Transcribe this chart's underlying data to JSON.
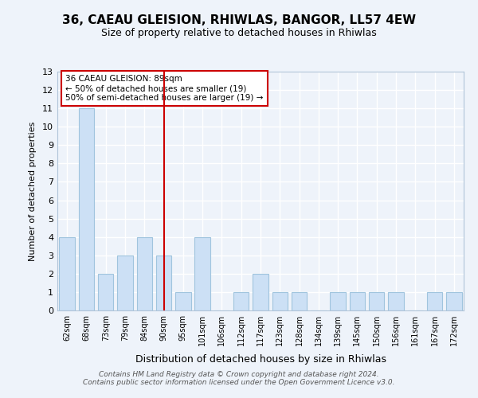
{
  "title1": "36, CAEAU GLEISION, RHIWLAS, BANGOR, LL57 4EW",
  "title2": "Size of property relative to detached houses in Rhiwlas",
  "xlabel": "Distribution of detached houses by size in Rhiwlas",
  "ylabel": "Number of detached properties",
  "categories": [
    "62sqm",
    "68sqm",
    "73sqm",
    "79sqm",
    "84sqm",
    "90sqm",
    "95sqm",
    "101sqm",
    "106sqm",
    "112sqm",
    "117sqm",
    "123sqm",
    "128sqm",
    "134sqm",
    "139sqm",
    "145sqm",
    "150sqm",
    "156sqm",
    "161sqm",
    "167sqm",
    "172sqm"
  ],
  "values": [
    4,
    11,
    2,
    3,
    4,
    3,
    1,
    4,
    0,
    1,
    2,
    1,
    1,
    0,
    1,
    1,
    1,
    1,
    0,
    1,
    1
  ],
  "bar_color": "#cce0f5",
  "bar_edge_color": "#a0c4de",
  "highlight_line_index": 5,
  "highlight_line_color": "#cc0000",
  "annotation_text": "36 CAEAU GLEISION: 89sqm\n← 50% of detached houses are smaller (19)\n50% of semi-detached houses are larger (19) →",
  "annotation_box_color": "#ffffff",
  "annotation_box_edge": "#cc0000",
  "ylim": [
    0,
    13
  ],
  "yticks": [
    0,
    1,
    2,
    3,
    4,
    5,
    6,
    7,
    8,
    9,
    10,
    11,
    12,
    13
  ],
  "footer": "Contains HM Land Registry data © Crown copyright and database right 2024.\nContains public sector information licensed under the Open Government Licence v3.0.",
  "background_color": "#eef3fa",
  "grid_color": "#ffffff"
}
